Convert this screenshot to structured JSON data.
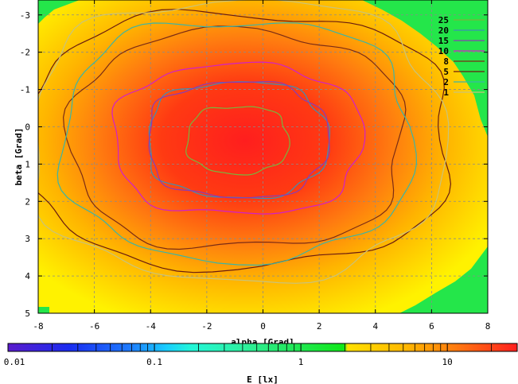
{
  "chart_data": {
    "type": "heatmap",
    "xlabel": "alpha [Grad]",
    "ylabel": "beta [Grad]",
    "xlim": [
      -8,
      8
    ],
    "ylim": [
      -3.4,
      5
    ],
    "y_inverted": true,
    "x_ticks": [
      "-8",
      "-6",
      "-4",
      "-2",
      "0",
      "2",
      "4",
      "6",
      "8"
    ],
    "y_ticks": [
      "-3",
      "-2",
      "-1",
      "0",
      "1",
      "2",
      "3",
      "4",
      "5"
    ],
    "grid": true,
    "legend_position": "top-right",
    "contour_levels": [
      {
        "label": "25",
        "color": "#79b53c",
        "rx": 1.8,
        "ry": 0.9
      },
      {
        "label": "20",
        "color": "#3c8fb5",
        "rx": 3.2,
        "ry": 1.55
      },
      {
        "label": "15",
        "color": "#8a3cb5",
        "rx": 3.2,
        "ry": 1.55
      },
      {
        "label": "10",
        "color": "#d21fc8",
        "rx": 4.4,
        "ry": 2.0
      },
      {
        "label": "8",
        "color": "#7b2c15",
        "rx": 5.9,
        "ry": 2.9
      },
      {
        "label": "5",
        "color": "#6a1c0f",
        "rx": 7.6,
        "ry": 3.4
      },
      {
        "label": "2",
        "color": "#3ab5a6",
        "rx": 6.2,
        "ry": 3.2
      },
      {
        "label": "1",
        "color": "#c9c37a",
        "rx": 7.3,
        "ry": 3.75
      }
    ],
    "colorbar": {
      "label": "E [lx]",
      "scale": "log",
      "range": [
        0.01,
        30
      ],
      "ticks": [
        "0.01",
        "0.1",
        "1",
        "10"
      ]
    }
  }
}
